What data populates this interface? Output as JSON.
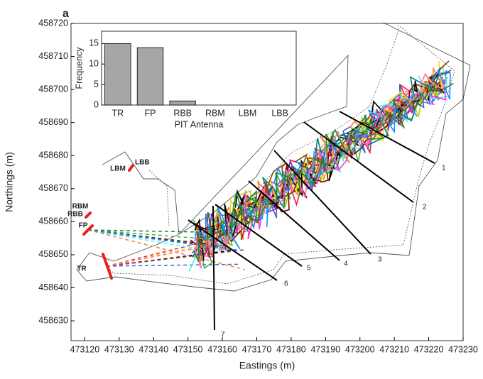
{
  "chart_data": [
    {
      "type": "line",
      "panel_label": "a",
      "xlabel": "Eastings (m)",
      "ylabel": "Northings (m)",
      "xlim": [
        473116,
        473230
      ],
      "xticks": [
        473120,
        473130,
        473140,
        473150,
        473160,
        473170,
        473180,
        473190,
        473200,
        473210,
        473220,
        473230
      ],
      "ylim": [
        458624,
        458720
      ],
      "yticks": [
        458630,
        458640,
        458650,
        458660,
        458670,
        458680,
        458690,
        458700,
        458710,
        458720
      ],
      "antenna_labels": [
        "LBB",
        "LBM",
        "RBM",
        "RBB",
        "FP",
        "TR"
      ],
      "transect_labels": [
        "1",
        "2",
        "3",
        "4",
        "5",
        "6",
        "7"
      ]
    },
    {
      "type": "bar",
      "xlabel": "PIT Antenna",
      "ylabel": "Frequency",
      "categories": [
        "TR",
        "FP",
        "RBB",
        "RBM",
        "LBM",
        "LBB"
      ],
      "values": [
        15,
        14,
        1,
        0,
        0,
        0
      ],
      "color": "#a6a6a6",
      "ylim": [
        0,
        18
      ],
      "yticks": [
        0,
        5,
        10,
        15
      ]
    }
  ]
}
